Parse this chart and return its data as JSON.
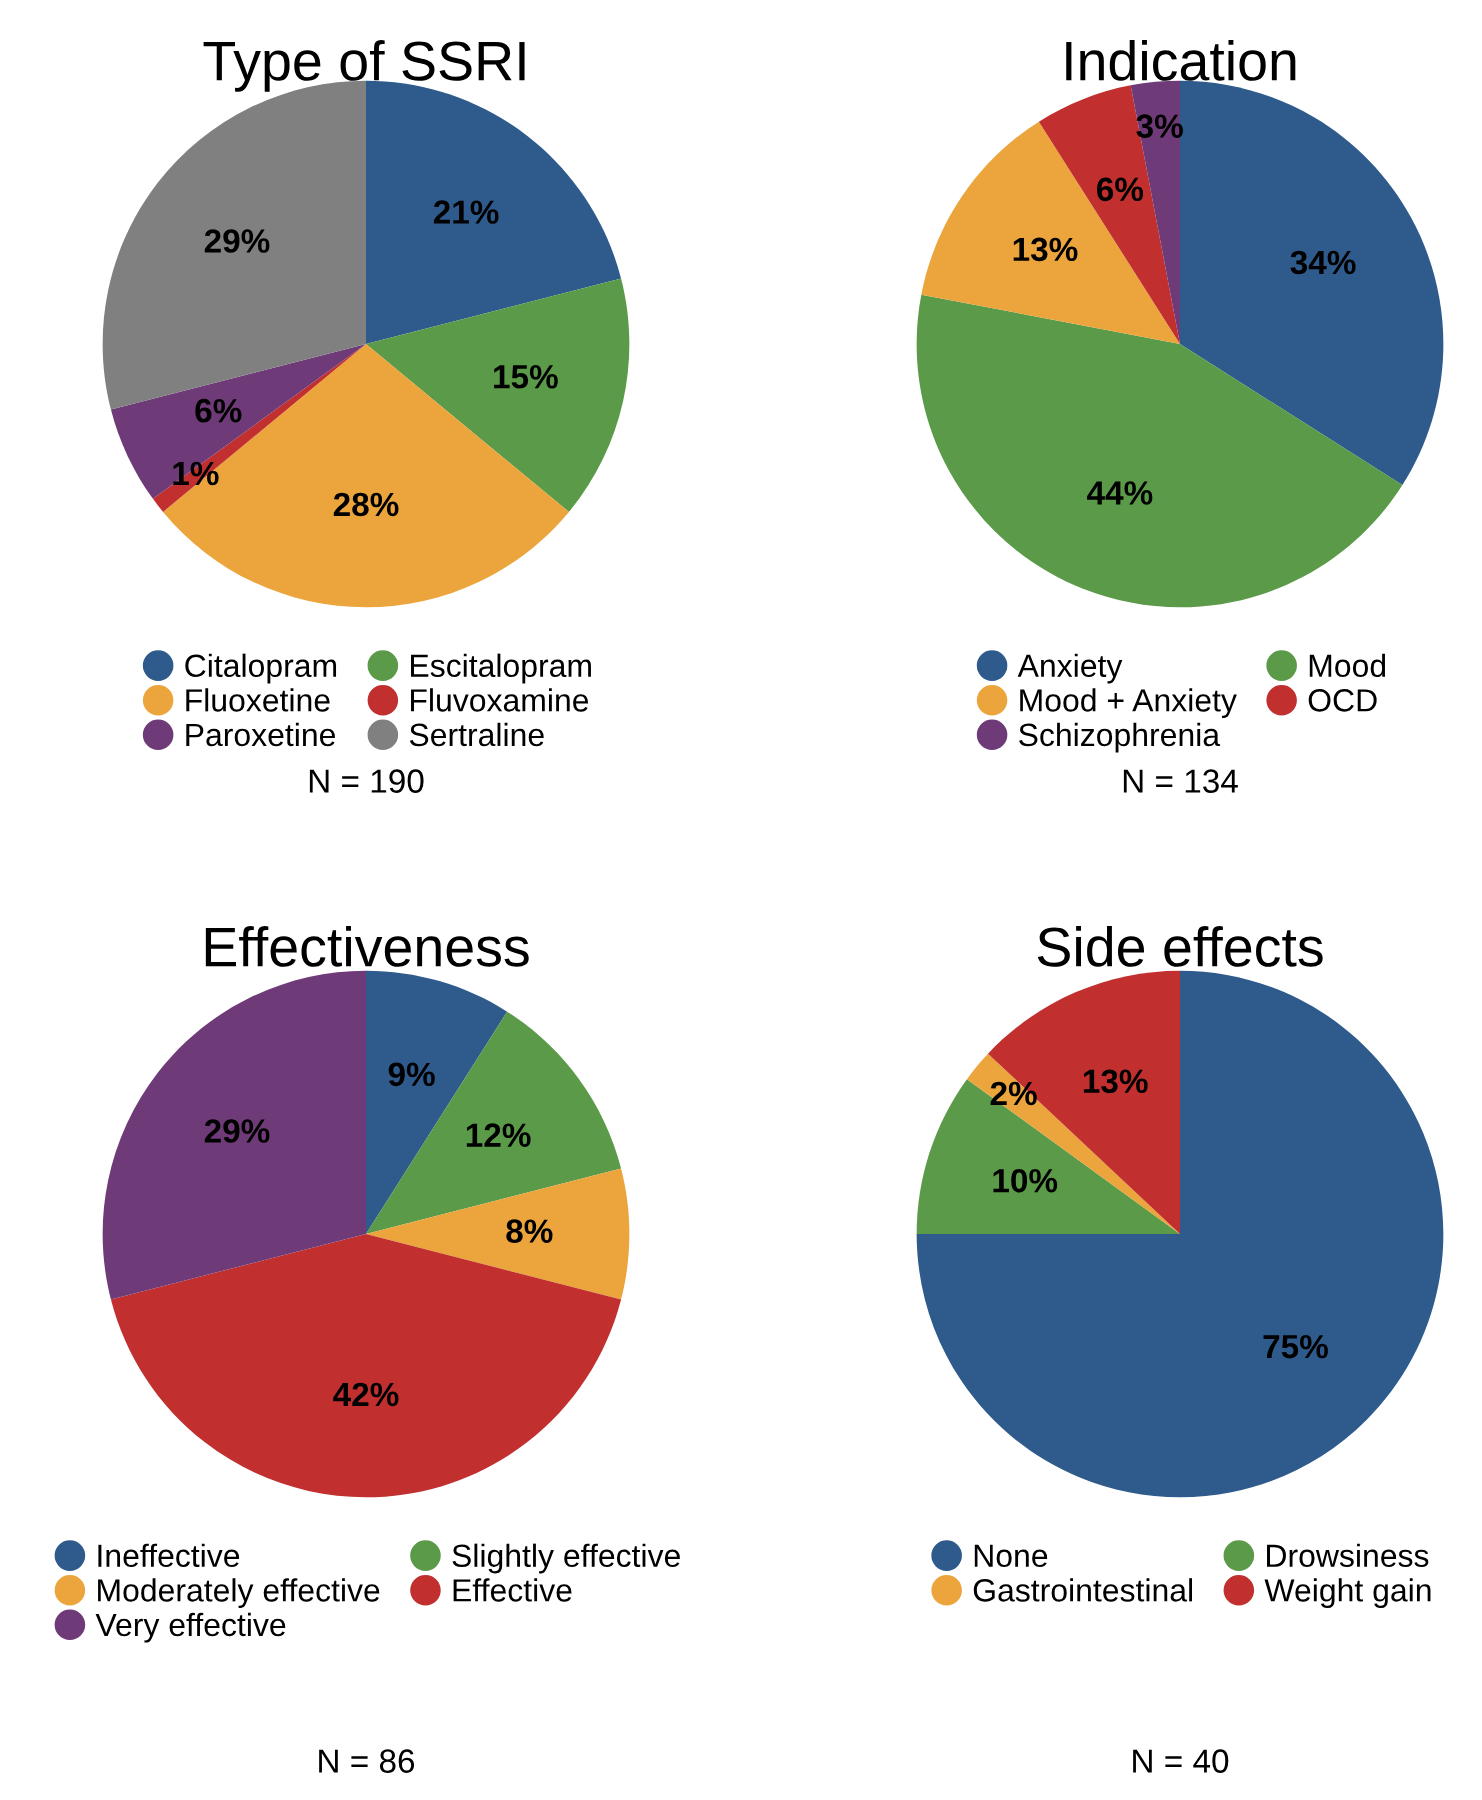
{
  "chart_data": [
    {
      "type": "pie",
      "title": "Type of SSRI",
      "categories": [
        "Citalopram",
        "Escitalopram",
        "Fluoxetine",
        "Fluvoxamine",
        "Paroxetine",
        "Sertraline"
      ],
      "values": [
        21,
        15,
        28,
        1,
        6,
        29
      ],
      "value_labels": [
        "21%",
        "15%",
        "28%",
        "1%",
        "6%",
        "29%"
      ],
      "colors": [
        "#2e5a8c",
        "#5b9a48",
        "#eba53c",
        "#c1302f",
        "#6f3a78",
        "#808080"
      ],
      "legend": "bottom",
      "annotations": [
        "N = 190"
      ]
    },
    {
      "type": "pie",
      "title": "Indication",
      "categories": [
        "Anxiety",
        "Mood",
        "Mood + Anxiety",
        "OCD",
        "Schizophrenia"
      ],
      "values": [
        34,
        44,
        13,
        6,
        3
      ],
      "value_labels": [
        "34%",
        "44%",
        "13%",
        "6%",
        "3%"
      ],
      "colors": [
        "#2e5a8c",
        "#5b9a48",
        "#eba53c",
        "#c1302f",
        "#6f3a78"
      ],
      "legend": "bottom",
      "annotations": [
        "N = 134"
      ]
    },
    {
      "type": "pie",
      "title": "Effectiveness",
      "categories": [
        "Ineffective",
        "Slightly effective",
        "Moderately effective",
        "Effective",
        "Very effective"
      ],
      "values": [
        9,
        12,
        8,
        42,
        29
      ],
      "value_labels": [
        "9%",
        "12%",
        "8%",
        "42%",
        "29%"
      ],
      "colors": [
        "#2e5a8c",
        "#5b9a48",
        "#eba53c",
        "#c1302f",
        "#6f3a78"
      ],
      "legend": "bottom",
      "annotations": [
        "N = 86"
      ]
    },
    {
      "type": "pie",
      "title": "Side effects",
      "categories": [
        "None",
        "Drowsiness",
        "Gastrointestinal",
        "Weight gain"
      ],
      "values": [
        75,
        10,
        2,
        13
      ],
      "value_labels": [
        "75%",
        "10%",
        "2%",
        "13%"
      ],
      "colors": [
        "#2e5a8c",
        "#5b9a48",
        "#eba53c",
        "#c1302f"
      ],
      "legend": "bottom",
      "annotations": [
        "N = 40"
      ]
    }
  ]
}
